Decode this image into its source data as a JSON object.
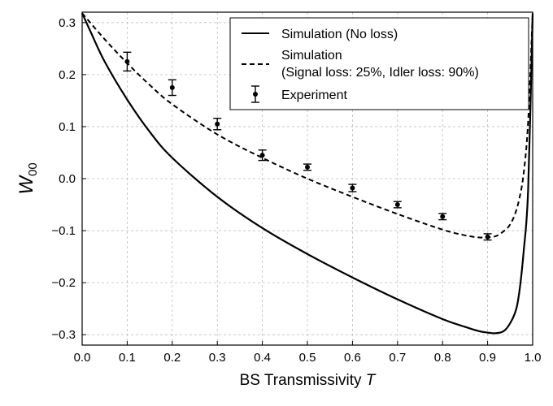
{
  "chart_data": {
    "type": "line",
    "title": "",
    "xlabel_prefix": "BS Transmissivity ",
    "xlabel_var": "T",
    "ylabel_main": "W",
    "ylabel_sub": "00",
    "xlim": [
      0.0,
      1.0
    ],
    "ylim": [
      -0.32,
      0.32
    ],
    "xticks": [
      0.0,
      0.1,
      0.2,
      0.3,
      0.4,
      0.5,
      0.6,
      0.7,
      0.8,
      0.9,
      1.0
    ],
    "xtick_labels": [
      "0.0",
      "0.1",
      "0.2",
      "0.3",
      "0.4",
      "0.5",
      "0.6",
      "0.7",
      "0.8",
      "0.9",
      "1.0"
    ],
    "yticks": [
      -0.3,
      -0.2,
      -0.1,
      0.0,
      0.1,
      0.2,
      0.3
    ],
    "ytick_labels": [
      "−0.3",
      "−0.2",
      "−0.1",
      "0.0",
      "0.1",
      "0.2",
      "0.3"
    ],
    "grid": true,
    "legend_position": "top-right",
    "series": [
      {
        "name": "Simulation (No loss)",
        "style": "solid",
        "color": "#000000",
        "x": [
          0.0,
          0.02,
          0.05,
          0.1,
          0.15,
          0.2,
          0.3,
          0.4,
          0.5,
          0.6,
          0.7,
          0.8,
          0.85,
          0.88,
          0.9,
          0.92,
          0.94,
          0.96,
          0.97,
          0.98,
          0.99,
          1.0
        ],
        "y": [
          0.318,
          0.28,
          0.225,
          0.152,
          0.09,
          0.04,
          -0.035,
          -0.095,
          -0.145,
          -0.19,
          -0.232,
          -0.27,
          -0.285,
          -0.293,
          -0.296,
          -0.297,
          -0.29,
          -0.26,
          -0.22,
          -0.14,
          -0.02,
          0.318
        ]
      },
      {
        "name_line1": "Simulation",
        "name_line2": "(Signal loss: 25%, Idler loss: 90%)",
        "style": "dashed",
        "color": "#000000",
        "x": [
          0.0,
          0.05,
          0.1,
          0.15,
          0.2,
          0.3,
          0.4,
          0.5,
          0.6,
          0.7,
          0.8,
          0.85,
          0.88,
          0.9,
          0.92,
          0.94,
          0.95,
          0.96,
          0.97,
          0.98,
          0.99,
          1.0
        ],
        "y": [
          0.318,
          0.268,
          0.222,
          0.18,
          0.143,
          0.085,
          0.04,
          0.0,
          -0.035,
          -0.068,
          -0.098,
          -0.109,
          -0.113,
          -0.113,
          -0.11,
          -0.098,
          -0.088,
          -0.07,
          -0.04,
          0.01,
          0.11,
          0.318
        ]
      },
      {
        "name": "Experiment",
        "style": "errorbar",
        "color": "#000000",
        "x": [
          0.1,
          0.2,
          0.3,
          0.4,
          0.5,
          0.6,
          0.7,
          0.8,
          0.9
        ],
        "y": [
          0.225,
          0.175,
          0.105,
          0.045,
          0.022,
          -0.018,
          -0.05,
          -0.073,
          -0.112
        ],
        "yerr": [
          0.018,
          0.015,
          0.011,
          0.01,
          0.006,
          0.007,
          0.006,
          0.006,
          0.006
        ]
      }
    ]
  }
}
